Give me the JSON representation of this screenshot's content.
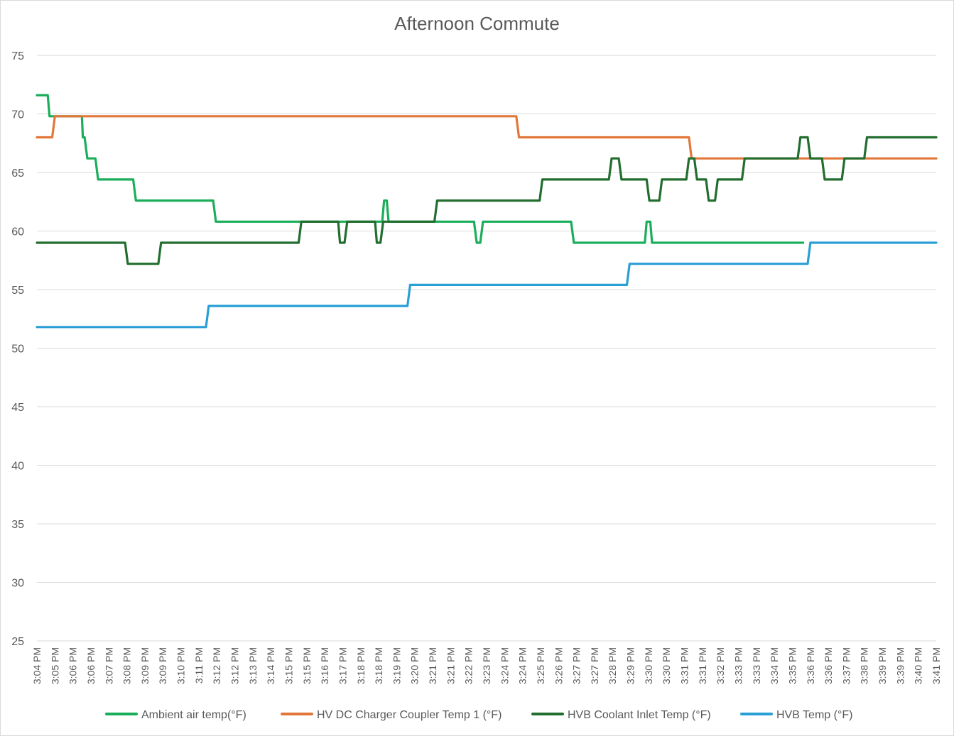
{
  "chart_data": {
    "type": "line",
    "title": "Afternoon Commute",
    "xlabel": "",
    "ylabel": "",
    "ylim": [
      25,
      75
    ],
    "yticks": [
      25,
      30,
      35,
      40,
      45,
      50,
      55,
      60,
      65,
      70,
      75
    ],
    "grid": true,
    "legend_position": "bottom",
    "categories": [
      "3:04 PM",
      "3:05 PM",
      "3:06 PM",
      "3:06 PM",
      "3:07 PM",
      "3:08 PM",
      "3:09 PM",
      "3:09 PM",
      "3:10 PM",
      "3:11 PM",
      "3:12 PM",
      "3:12 PM",
      "3:13 PM",
      "3:14 PM",
      "3:15 PM",
      "3:15 PM",
      "3:16 PM",
      "3:17 PM",
      "3:18 PM",
      "3:18 PM",
      "3:19 PM",
      "3:20 PM",
      "3:21 PM",
      "3:21 PM",
      "3:22 PM",
      "3:23 PM",
      "3:24 PM",
      "3:24 PM",
      "3:25 PM",
      "3:26 PM",
      "3:27 PM",
      "3:27 PM",
      "3:28 PM",
      "3:29 PM",
      "3:30 PM",
      "3:30 PM",
      "3:31 PM",
      "3:31 PM",
      "3:32 PM",
      "3:33 PM",
      "3:33 PM",
      "3:34 PM",
      "3:35 PM",
      "3:36 PM",
      "3:36 PM",
      "3:37 PM",
      "3:38 PM",
      "3:39 PM",
      "3:39 PM",
      "3:40 PM",
      "3:41 PM"
    ],
    "x_range": [
      0,
      50
    ],
    "series": [
      {
        "name": "Ambient air temp(°F)",
        "color": "#1aae5a",
        "points": [
          [
            0,
            71.6
          ],
          [
            0.6,
            71.6
          ],
          [
            0.7,
            69.8
          ],
          [
            2.5,
            69.8
          ],
          [
            2.55,
            68
          ],
          [
            2.65,
            68
          ],
          [
            2.8,
            66.2
          ],
          [
            3.25,
            66.2
          ],
          [
            3.4,
            64.4
          ],
          [
            5.35,
            64.4
          ],
          [
            5.5,
            62.6
          ],
          [
            9.8,
            62.6
          ],
          [
            9.95,
            60.8
          ],
          [
            19.2,
            60.8
          ],
          [
            19.3,
            62.6
          ],
          [
            19.45,
            62.6
          ],
          [
            19.55,
            60.8
          ],
          [
            24.3,
            60.8
          ],
          [
            24.45,
            59
          ],
          [
            24.65,
            59
          ],
          [
            24.8,
            60.8
          ],
          [
            29.7,
            60.8
          ],
          [
            29.85,
            59
          ],
          [
            33.8,
            59
          ],
          [
            33.9,
            60.8
          ],
          [
            34.1,
            60.8
          ],
          [
            34.2,
            59
          ],
          [
            42.6,
            59
          ]
        ]
      },
      {
        "name": "HV DC Charger Coupler Temp 1 (°F)",
        "color": "#e2773a",
        "points": [
          [
            0,
            68
          ],
          [
            0.85,
            68
          ],
          [
            1.0,
            69.8
          ],
          [
            26.65,
            69.8
          ],
          [
            26.8,
            68
          ],
          [
            36.25,
            68
          ],
          [
            36.4,
            66.2
          ],
          [
            50,
            66.2
          ]
        ]
      },
      {
        "name": "HVB Coolant Inlet Temp (°F)",
        "color": "#226e2e",
        "points": [
          [
            0,
            59
          ],
          [
            4.9,
            59
          ],
          [
            5.05,
            57.2
          ],
          [
            6.75,
            57.2
          ],
          [
            6.9,
            59
          ],
          [
            14.55,
            59
          ],
          [
            14.7,
            60.8
          ],
          [
            16.75,
            60.8
          ],
          [
            16.85,
            59
          ],
          [
            17.1,
            59
          ],
          [
            17.25,
            60.8
          ],
          [
            18.8,
            60.8
          ],
          [
            18.9,
            59
          ],
          [
            19.1,
            59
          ],
          [
            19.25,
            60.8
          ],
          [
            22.1,
            60.8
          ],
          [
            22.25,
            62.6
          ],
          [
            27.95,
            62.6
          ],
          [
            28.1,
            64.4
          ],
          [
            31.8,
            64.4
          ],
          [
            31.95,
            66.2
          ],
          [
            32.35,
            66.2
          ],
          [
            32.5,
            64.4
          ],
          [
            33.9,
            64.4
          ],
          [
            34.05,
            62.6
          ],
          [
            34.6,
            62.6
          ],
          [
            34.75,
            64.4
          ],
          [
            36.1,
            64.4
          ],
          [
            36.25,
            66.2
          ],
          [
            36.55,
            66.2
          ],
          [
            36.7,
            64.4
          ],
          [
            37.2,
            64.4
          ],
          [
            37.35,
            62.6
          ],
          [
            37.7,
            62.6
          ],
          [
            37.85,
            64.4
          ],
          [
            39.2,
            64.4
          ],
          [
            39.35,
            66.2
          ],
          [
            42.3,
            66.2
          ],
          [
            42.45,
            68
          ],
          [
            42.85,
            68
          ],
          [
            43.0,
            66.2
          ],
          [
            43.65,
            66.2
          ],
          [
            43.8,
            64.4
          ],
          [
            44.75,
            64.4
          ],
          [
            44.9,
            66.2
          ],
          [
            46.0,
            66.2
          ],
          [
            46.15,
            68
          ],
          [
            50,
            68
          ]
        ]
      },
      {
        "name": "HVB Temp (°F)",
        "color": "#2a9fd6",
        "points": [
          [
            0,
            51.8
          ],
          [
            9.4,
            51.8
          ],
          [
            9.55,
            53.6
          ],
          [
            20.6,
            53.6
          ],
          [
            20.75,
            55.4
          ],
          [
            32.8,
            55.4
          ],
          [
            32.95,
            57.2
          ],
          [
            42.85,
            57.2
          ],
          [
            43.0,
            59
          ],
          [
            50,
            59
          ]
        ]
      }
    ]
  }
}
